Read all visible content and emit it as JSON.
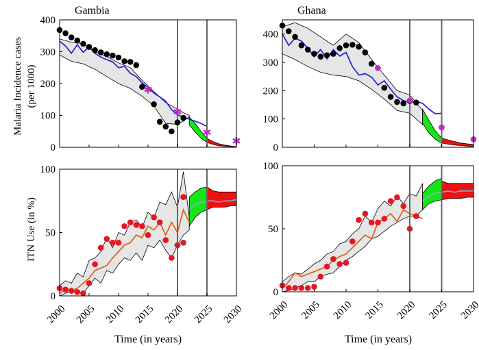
{
  "figure": {
    "xlabel": "Time (in years)",
    "ylabel_top_line1": "Malaria Incidence cases",
    "ylabel_top_line2": "(per 1000)",
    "ylabel_bottom": "ITN Use (in %)"
  },
  "colors": {
    "band_fill": "#e6e6e6",
    "band_edge": "#000000",
    "model_incidence": "#1f1fd6",
    "model_itn": "#d9601a",
    "data_incidence": "#000000",
    "data_itn": "#e8141e",
    "validation_marker": "#c02bc0",
    "projection_band_green": "#16e616",
    "projection_band_red": "#ee1111",
    "projection_itn_line": "#7fb3d5",
    "vline": "#666666"
  },
  "chart_data": [
    {
      "id": "gambia_incidence",
      "type": "line",
      "title": "Gambia",
      "ylabel": "",
      "xlim": [
        2000,
        2030
      ],
      "ylim": [
        0,
        400
      ],
      "xticks": [
        2000,
        2005,
        2010,
        2015,
        2020,
        2025,
        2030
      ],
      "yticks": [
        0,
        100,
        200,
        300,
        400
      ],
      "vlines": [
        2020,
        2025
      ],
      "marker_style": "star",
      "band": {
        "x": [
          2000,
          2002,
          2004,
          2006,
          2008,
          2010,
          2012,
          2014,
          2016,
          2018,
          2020,
          2021,
          2022
        ],
        "lower": [
          290,
          270,
          262,
          245,
          222,
          200,
          185,
          160,
          130,
          75,
          72,
          82,
          95
        ],
        "upper": [
          340,
          330,
          325,
          300,
          285,
          265,
          250,
          210,
          175,
          140,
          120,
          108,
          100
        ]
      },
      "model": {
        "x": [
          2000,
          2001,
          2002,
          2003,
          2004,
          2005,
          2006,
          2007,
          2008,
          2009,
          2010,
          2011,
          2012,
          2013,
          2014,
          2015,
          2016,
          2017,
          2018,
          2019,
          2020,
          2021,
          2022,
          2023,
          2024,
          2025
        ],
        "y": [
          333,
          318,
          295,
          322,
          298,
          315,
          295,
          283,
          275,
          268,
          250,
          254,
          232,
          222,
          202,
          188,
          170,
          158,
          145,
          118,
          102,
          95,
          88,
          82,
          75,
          65
        ]
      },
      "data": {
        "x": [
          2000,
          2001,
          2002,
          2003,
          2004,
          2005,
          2006,
          2007,
          2008,
          2009,
          2010,
          2011,
          2012,
          2013,
          2014,
          2016,
          2017,
          2018,
          2019,
          2020,
          2021
        ],
        "y": [
          368,
          358,
          345,
          335,
          325,
          315,
          305,
          298,
          292,
          288,
          282,
          270,
          268,
          258,
          190,
          135,
          80,
          65,
          50,
          78,
          92
        ]
      },
      "validation": {
        "x": [
          2015,
          2020,
          2025,
          2030
        ],
        "y": [
          180,
          110,
          45,
          18
        ]
      },
      "projection_green": {
        "x": [
          2022,
          2023,
          2024,
          2025
        ],
        "lower": [
          70,
          48,
          28,
          15
        ],
        "upper": [
          95,
          75,
          50,
          28
        ]
      },
      "projection_red": {
        "x": [
          2025,
          2026,
          2027,
          2028,
          2029,
          2030
        ],
        "lower": [
          15,
          9,
          5,
          3,
          2,
          1
        ],
        "upper": [
          28,
          18,
          11,
          7,
          4,
          2
        ]
      }
    },
    {
      "id": "ghana_incidence",
      "type": "line",
      "title": "Ghana",
      "xlim": [
        2000,
        2030
      ],
      "ylim": [
        0,
        450
      ],
      "xticks": [
        2000,
        2005,
        2010,
        2015,
        2020,
        2025,
        2030
      ],
      "yticks": [
        0,
        100,
        200,
        300,
        400
      ],
      "vlines": [
        2020,
        2025
      ],
      "marker_style": "circle",
      "band": {
        "x": [
          2000,
          2002,
          2004,
          2006,
          2008,
          2010,
          2012,
          2014,
          2016,
          2018,
          2020,
          2022
        ],
        "lower": [
          330,
          310,
          285,
          265,
          255,
          250,
          235,
          205,
          170,
          130,
          120,
          80
        ],
        "upper": [
          425,
          440,
          420,
          390,
          360,
          400,
          370,
          310,
          255,
          200,
          185,
          130
        ]
      },
      "model": {
        "x": [
          2000,
          2001,
          2002,
          2003,
          2004,
          2005,
          2006,
          2007,
          2008,
          2009,
          2010,
          2011,
          2012,
          2013,
          2014,
          2015,
          2016,
          2017,
          2018,
          2019,
          2020,
          2021,
          2022,
          2023,
          2024,
          2025
        ],
        "y": [
          400,
          360,
          385,
          375,
          350,
          320,
          345,
          312,
          345,
          322,
          335,
          285,
          255,
          260,
          248,
          220,
          235,
          205,
          178,
          165,
          160,
          162,
          155,
          135,
          118,
          120
        ]
      },
      "data": {
        "x": [
          2000,
          2001,
          2002,
          2003,
          2004,
          2005,
          2006,
          2007,
          2008,
          2009,
          2010,
          2011,
          2012,
          2013,
          2014,
          2016,
          2017,
          2018,
          2019,
          2020,
          2021
        ],
        "y": [
          430,
          410,
          390,
          360,
          345,
          330,
          320,
          325,
          330,
          350,
          360,
          362,
          355,
          335,
          295,
          210,
          178,
          160,
          155,
          163,
          158
        ]
      },
      "validation": {
        "x": [
          2015,
          2020,
          2025,
          2030
        ],
        "y": [
          280,
          165,
          70,
          28
        ]
      },
      "projection_green": {
        "x": [
          2022,
          2023,
          2024,
          2025
        ],
        "lower": [
          85,
          50,
          28,
          15
        ],
        "upper": [
          135,
          95,
          58,
          32
        ]
      },
      "projection_red": {
        "x": [
          2025,
          2026,
          2027,
          2028,
          2029,
          2030
        ],
        "lower": [
          15,
          11,
          8,
          6,
          4,
          3
        ],
        "upper": [
          32,
          26,
          20,
          15,
          12,
          10
        ]
      }
    },
    {
      "id": "gambia_itn",
      "type": "line",
      "xlim": [
        2000,
        2030
      ],
      "ylim": [
        0,
        100
      ],
      "xticks": [
        2000,
        2005,
        2010,
        2015,
        2020,
        2025,
        2030
      ],
      "yticks": [
        0,
        50,
        100
      ],
      "vlines": [
        2020,
        2025
      ],
      "band": {
        "x": [
          2000,
          2001,
          2002,
          2003,
          2004,
          2005,
          2006,
          2007,
          2008,
          2009,
          2010,
          2011,
          2012,
          2013,
          2014,
          2015,
          2016,
          2017,
          2018,
          2019,
          2020,
          2021,
          2022
        ],
        "lower": [
          0,
          2,
          4,
          3,
          2,
          8,
          14,
          10,
          20,
          18,
          25,
          30,
          28,
          34,
          28,
          40,
          38,
          44,
          36,
          30,
          40,
          48,
          52
        ],
        "upper": [
          8,
          12,
          10,
          18,
          15,
          28,
          30,
          35,
          46,
          38,
          50,
          48,
          58,
          60,
          54,
          66,
          62,
          74,
          72,
          82,
          70,
          98,
          62
        ]
      },
      "model": {
        "x": [
          2000,
          2001,
          2002,
          2003,
          2004,
          2005,
          2006,
          2007,
          2008,
          2009,
          2010,
          2011,
          2012,
          2013,
          2014,
          2015,
          2016,
          2017,
          2018,
          2019,
          2020,
          2021,
          2022
        ],
        "y": [
          2,
          5,
          4,
          6,
          10,
          14,
          20,
          22,
          24,
          30,
          35,
          40,
          42,
          48,
          46,
          55,
          52,
          58,
          48,
          58,
          50,
          68,
          58
        ]
      },
      "data": {
        "x": [
          2000,
          2001,
          2002,
          2003,
          2004,
          2005,
          2006,
          2007,
          2008,
          2009,
          2010,
          2011,
          2012,
          2013,
          2014,
          2015,
          2016,
          2017,
          2018,
          2019,
          2020,
          2021
        ],
        "y": [
          6,
          5,
          4,
          3,
          2,
          10,
          25,
          38,
          45,
          42,
          42,
          55,
          58,
          56,
          55,
          48,
          62,
          58,
          44,
          30,
          40,
          78
        ]
      },
      "validation": {
        "x": [
          2020,
          2021
        ],
        "y": [
          40,
          42
        ]
      },
      "projection_green": {
        "x": [
          2022,
          2023,
          2024,
          2025
        ],
        "lower": [
          55,
          62,
          66,
          68
        ],
        "upper": [
          78,
          82,
          85,
          86
        ]
      },
      "projection_red": {
        "x": [
          2025,
          2026,
          2027,
          2028,
          2029,
          2030
        ],
        "lower": [
          68,
          70,
          70,
          70,
          71,
          71
        ],
        "upper": [
          86,
          83,
          82,
          82,
          82,
          82
        ]
      },
      "projection_line": {
        "x": [
          2022,
          2023,
          2024,
          2025,
          2026,
          2027,
          2028,
          2029,
          2030
        ],
        "y": [
          68,
          72,
          74,
          75,
          75,
          74,
          75,
          75,
          76
        ]
      }
    },
    {
      "id": "ghana_itn",
      "type": "line",
      "xlim": [
        2000,
        2030
      ],
      "ylim": [
        0,
        100
      ],
      "xticks": [
        2000,
        2005,
        2010,
        2015,
        2020,
        2025,
        2030
      ],
      "yticks": [
        0,
        50,
        100
      ],
      "vlines": [
        2020,
        2025
      ],
      "band": {
        "x": [
          2000,
          2001,
          2002,
          2003,
          2004,
          2005,
          2006,
          2007,
          2008,
          2009,
          2010,
          2011,
          2012,
          2013,
          2014,
          2015,
          2016,
          2017,
          2018,
          2019,
          2020,
          2021,
          2022
        ],
        "lower": [
          0,
          1,
          3,
          5,
          8,
          8,
          12,
          14,
          15,
          20,
          25,
          28,
          32,
          36,
          42,
          44,
          48,
          52,
          55,
          58,
          60,
          60,
          65
        ],
        "upper": [
          8,
          12,
          15,
          14,
          18,
          22,
          25,
          30,
          32,
          38,
          40,
          46,
          50,
          60,
          55,
          66,
          72,
          68,
          76,
          70,
          78,
          76,
          86
        ]
      },
      "model": {
        "x": [
          2000,
          2001,
          2002,
          2003,
          2004,
          2005,
          2006,
          2007,
          2008,
          2009,
          2010,
          2011,
          2012,
          2013,
          2014,
          2015,
          2016,
          2017,
          2018,
          2019,
          2020,
          2021,
          2022
        ],
        "y": [
          3,
          8,
          15,
          12,
          14,
          16,
          18,
          20,
          25,
          28,
          30,
          35,
          40,
          45,
          42,
          55,
          58,
          62,
          56,
          65,
          62,
          60,
          58
        ]
      },
      "data": {
        "x": [
          2000,
          2001,
          2002,
          2003,
          2004,
          2005,
          2006,
          2007,
          2008,
          2009,
          2010,
          2011,
          2012,
          2013,
          2014,
          2015,
          2016,
          2017,
          2018,
          2019,
          2021
        ],
        "y": [
          5,
          3,
          3,
          3,
          3,
          4,
          12,
          20,
          26,
          22,
          23,
          40,
          57,
          62,
          55,
          55,
          58,
          72,
          75,
          68,
          60
        ]
      },
      "validation": {
        "x": [
          2020
        ],
        "y": [
          50
        ]
      },
      "projection_green": {
        "x": [
          2022,
          2023,
          2024,
          2025
        ],
        "lower": [
          65,
          70,
          72,
          73
        ],
        "upper": [
          78,
          84,
          88,
          90
        ]
      },
      "projection_red": {
        "x": [
          2025,
          2026,
          2027,
          2028,
          2029,
          2030
        ],
        "lower": [
          73,
          74,
          74,
          74,
          75,
          75
        ],
        "upper": [
          88,
          86,
          86,
          86,
          86,
          86
        ]
      },
      "projection_line": {
        "x": [
          2022,
          2023,
          2024,
          2025,
          2026,
          2027,
          2028,
          2029,
          2030
        ],
        "y": [
          72,
          76,
          78,
          79,
          80,
          79,
          80,
          80,
          80
        ]
      }
    }
  ]
}
